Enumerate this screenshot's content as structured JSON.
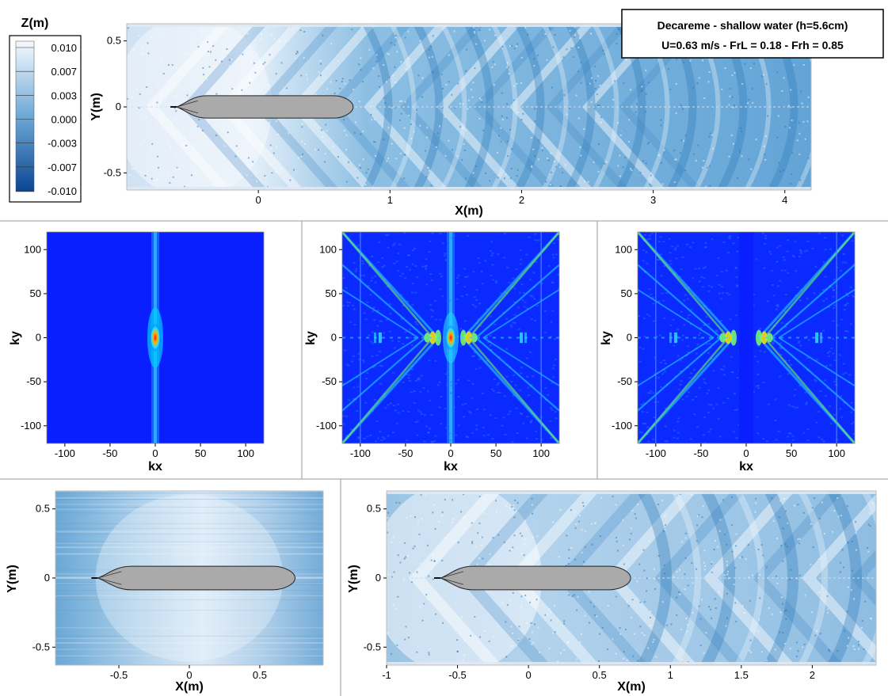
{
  "figure": {
    "title_line1": "Decareme - shallow water (h=5.6cm)",
    "title_line2": "U=0.63 m/s - FrL = 0.18 - Frh = 0.85"
  },
  "colorbar": {
    "title": "Z(m)",
    "levels": [
      "0.010",
      "0.007",
      "0.003",
      "0.000",
      "-0.003",
      "-0.007",
      "-0.010"
    ],
    "colors": [
      "#f4f8fc",
      "#c6ddef",
      "#97c2e2",
      "#6aa6d4",
      "#3f88c4",
      "#1f66ad",
      "#0b4a96"
    ]
  },
  "chart_data": [
    {
      "type": "heatmap",
      "id": "top-wave-field",
      "xlabel": "X(m)",
      "ylabel": "Y(m)",
      "xlim": [
        -1.0,
        4.2
      ],
      "ylim": [
        -0.63,
        0.63
      ],
      "xticks": [
        0,
        1,
        2,
        3,
        4
      ],
      "yticks": [
        -0.5,
        0,
        0.5
      ],
      "hull": {
        "x_start": -0.62,
        "x_end": 0.72,
        "half_width": 0.085
      },
      "grid": false
    },
    {
      "type": "heatmap",
      "id": "spectrum-1",
      "xlabel": "kx",
      "ylabel": "ky",
      "xlim": [
        -120,
        120
      ],
      "ylim": [
        -120,
        120
      ],
      "xticks": [
        -100,
        -50,
        0,
        50,
        100
      ],
      "yticks": [
        -100,
        -50,
        0,
        50,
        100
      ],
      "grid": false
    },
    {
      "type": "heatmap",
      "id": "spectrum-2",
      "xlabel": "kx",
      "ylabel": "ky",
      "xlim": [
        -120,
        120
      ],
      "ylim": [
        -120,
        120
      ],
      "xticks": [
        -100,
        -50,
        0,
        50,
        100
      ],
      "yticks": [
        -100,
        -50,
        0,
        50,
        100
      ],
      "grid": false
    },
    {
      "type": "heatmap",
      "id": "spectrum-3",
      "xlabel": "kx",
      "ylabel": "ky",
      "xlim": [
        -120,
        120
      ],
      "ylim": [
        -120,
        120
      ],
      "xticks": [
        -100,
        -50,
        0,
        50,
        100
      ],
      "yticks": [
        -100,
        -50,
        0,
        50,
        100
      ],
      "masked_band": [
        -8,
        8
      ],
      "grid": false
    },
    {
      "type": "heatmap",
      "id": "bottom-local-field",
      "xlabel": "X(m)",
      "ylabel": "Y(m)",
      "xlim": [
        -0.95,
        0.95
      ],
      "ylim": [
        -0.63,
        0.63
      ],
      "xticks": [
        -0.5,
        0,
        0.5
      ],
      "yticks": [
        -0.5,
        0,
        0.5
      ],
      "hull": {
        "x_start": -0.65,
        "x_end": 0.75,
        "half_width": 0.085
      },
      "grid": false
    },
    {
      "type": "heatmap",
      "id": "bottom-far-field",
      "xlabel": "X(m)",
      "ylabel": "Y(m)",
      "xlim": [
        -1.0,
        2.45
      ],
      "ylim": [
        -0.63,
        0.63
      ],
      "xticks": [
        -1,
        -0.5,
        0,
        0.5,
        1,
        1.5,
        2
      ],
      "yticks": [
        -0.5,
        0,
        0.5
      ],
      "hull": {
        "x_start": -0.62,
        "x_end": 0.72,
        "half_width": 0.085
      },
      "grid": false
    }
  ]
}
